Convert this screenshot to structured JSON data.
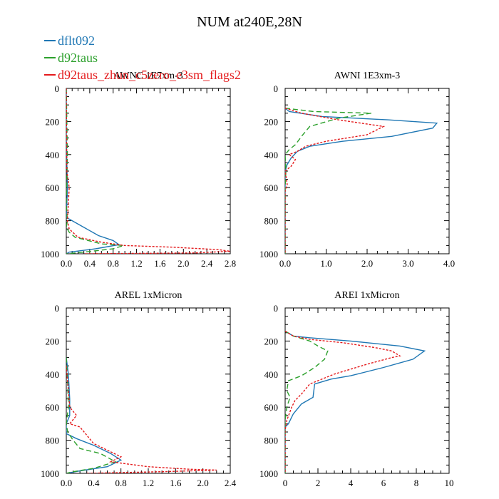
{
  "title": "NUM at240E,28N",
  "legend": [
    {
      "name": "dflt092",
      "color": "#1f77b4",
      "dash": ""
    },
    {
      "name": "d92taus",
      "color": "#2ca02c",
      "dash": "7,4"
    },
    {
      "name": "d92taus_zhun_c5zero_e3sm_flags2",
      "color": "#e41a1c",
      "dash": "3,2"
    }
  ],
  "chart_data": [
    {
      "type": "line",
      "title": "AWNC 1E7xm-3",
      "xlim": [
        0,
        2.8
      ],
      "ylim": [
        1000,
        0
      ],
      "x_ticks": [
        "0.0",
        "0.4",
        "0.8",
        "1.2",
        "1.6",
        "2.0",
        "2.4",
        "2.8"
      ],
      "x_tick_values": [
        0,
        0.4,
        0.8,
        1.2,
        1.6,
        2.0,
        2.4,
        2.8
      ],
      "y_ticks": [
        "0",
        "200",
        "400",
        "600",
        "800",
        "1000"
      ],
      "y_tick_values": [
        0,
        200,
        400,
        600,
        800,
        1000
      ],
      "series": [
        {
          "name": "dflt092",
          "points": [
            [
              0,
              0
            ],
            [
              0,
              300
            ],
            [
              0.02,
              600
            ],
            [
              0,
              780
            ],
            [
              0.1,
              800
            ],
            [
              0.3,
              840
            ],
            [
              0.55,
              890
            ],
            [
              0.8,
              920
            ],
            [
              0.9,
              945
            ],
            [
              0.5,
              970
            ],
            [
              0.05,
              990
            ],
            [
              0,
              1000
            ]
          ]
        },
        {
          "name": "d92taus",
          "points": [
            [
              0,
              0
            ],
            [
              0.02,
              400
            ],
            [
              0,
              700
            ],
            [
              0.02,
              800
            ],
            [
              0,
              840
            ],
            [
              0.05,
              870
            ],
            [
              0.15,
              900
            ],
            [
              0.6,
              940
            ],
            [
              0.98,
              950
            ],
            [
              0.8,
              970
            ],
            [
              0.3,
              990
            ],
            [
              0,
              1000
            ]
          ]
        },
        {
          "name": "d92taus_zhun_c5zero_e3sm_flags2",
          "points": [
            [
              0,
              0
            ],
            [
              0.01,
              500
            ],
            [
              0.05,
              600
            ],
            [
              0.02,
              800
            ],
            [
              0.05,
              850
            ],
            [
              0.2,
              900
            ],
            [
              0.6,
              930
            ],
            [
              1.0,
              950
            ],
            [
              1.8,
              960
            ],
            [
              2.6,
              975
            ],
            [
              2.8,
              985
            ],
            [
              2.2,
              995
            ],
            [
              0.3,
              1000
            ]
          ]
        }
      ]
    },
    {
      "type": "line",
      "title": "AWNI 1E3xm-3",
      "xlim": [
        0,
        4.0
      ],
      "ylim": [
        1000,
        0
      ],
      "x_ticks": [
        "0.0",
        "1.0",
        "2.0",
        "3.0",
        "4.0"
      ],
      "x_tick_values": [
        0,
        1,
        2,
        3,
        4
      ],
      "y_ticks": [
        "0",
        "200",
        "400",
        "600",
        "800",
        "1000"
      ],
      "y_tick_values": [
        0,
        200,
        400,
        600,
        800,
        1000
      ],
      "series": [
        {
          "name": "dflt092",
          "points": [
            [
              0,
              120
            ],
            [
              0.1,
              140
            ],
            [
              0.9,
              170
            ],
            [
              2.5,
              190
            ],
            [
              3.7,
              210
            ],
            [
              3.6,
              240
            ],
            [
              2.6,
              290
            ],
            [
              1.4,
              320
            ],
            [
              0.6,
              350
            ],
            [
              0.3,
              380
            ],
            [
              0.15,
              420
            ],
            [
              0.05,
              460
            ],
            [
              0,
              500
            ],
            [
              0,
              1000
            ]
          ]
        },
        {
          "name": "d92taus",
          "points": [
            [
              0,
              120
            ],
            [
              0.7,
              140
            ],
            [
              2.1,
              150
            ],
            [
              1.3,
              180
            ],
            [
              0.6,
              230
            ],
            [
              0.4,
              290
            ],
            [
              0.25,
              340
            ],
            [
              0.1,
              370
            ],
            [
              0,
              400
            ],
            [
              0.02,
              500
            ],
            [
              0,
              600
            ],
            [
              0,
              1000
            ]
          ]
        },
        {
          "name": "d92taus_zhun_c5zero_e3sm_flags2",
          "points": [
            [
              0,
              120
            ],
            [
              0.4,
              150
            ],
            [
              1.3,
              190
            ],
            [
              2.4,
              230
            ],
            [
              2.0,
              280
            ],
            [
              1.0,
              320
            ],
            [
              0.5,
              350
            ],
            [
              0.3,
              380
            ],
            [
              0.1,
              400
            ],
            [
              0.25,
              430
            ],
            [
              0.15,
              470
            ],
            [
              0,
              500
            ],
            [
              0.05,
              580
            ],
            [
              0,
              620
            ],
            [
              0,
              1000
            ]
          ]
        }
      ]
    },
    {
      "type": "line",
      "title": "AREL 1xMicron",
      "xlim": [
        0,
        2.4
      ],
      "ylim": [
        1000,
        0
      ],
      "x_ticks": [
        "0.0",
        "0.4",
        "0.8",
        "1.2",
        "1.6",
        "2.0",
        "2.4"
      ],
      "x_tick_values": [
        0,
        0.4,
        0.8,
        1.2,
        1.6,
        2.0,
        2.4
      ],
      "y_ticks": [
        "0",
        "200",
        "400",
        "600",
        "800",
        "1000"
      ],
      "y_tick_values": [
        0,
        200,
        400,
        600,
        800,
        1000
      ],
      "series": [
        {
          "name": "dflt092",
          "points": [
            [
              0,
              300
            ],
            [
              0.03,
              400
            ],
            [
              0.05,
              550
            ],
            [
              0.05,
              650
            ],
            [
              0.0,
              700
            ],
            [
              0.0,
              760
            ],
            [
              0.15,
              790
            ],
            [
              0.4,
              830
            ],
            [
              0.65,
              880
            ],
            [
              0.8,
              920
            ],
            [
              0.6,
              960
            ],
            [
              0.2,
              985
            ],
            [
              0,
              1000
            ]
          ]
        },
        {
          "name": "d92taus",
          "points": [
            [
              0,
              300
            ],
            [
              0.02,
              450
            ],
            [
              0.03,
              600
            ],
            [
              0.0,
              700
            ],
            [
              0.02,
              750
            ],
            [
              0.1,
              800
            ],
            [
              0.2,
              850
            ],
            [
              0.5,
              880
            ],
            [
              0.72,
              930
            ],
            [
              0.4,
              970
            ],
            [
              0.1,
              990
            ],
            [
              0,
              1000
            ]
          ]
        },
        {
          "name": "d92taus_zhun_c5zero_e3sm_flags2",
          "points": [
            [
              0,
              350
            ],
            [
              0.03,
              500
            ],
            [
              0.05,
              600
            ],
            [
              0.15,
              650
            ],
            [
              0.05,
              700
            ],
            [
              0.2,
              720
            ],
            [
              0.3,
              770
            ],
            [
              0.4,
              820
            ],
            [
              0.6,
              860
            ],
            [
              0.8,
              900
            ],
            [
              0.65,
              930
            ],
            [
              1.2,
              960
            ],
            [
              1.8,
              975
            ],
            [
              2.2,
              980
            ],
            [
              1.4,
              990
            ],
            [
              0.3,
              1000
            ]
          ]
        }
      ]
    },
    {
      "type": "line",
      "title": "AREI 1xMicron",
      "xlim": [
        0,
        10
      ],
      "ylim": [
        1000,
        0
      ],
      "x_ticks": [
        "0",
        "2",
        "4",
        "6",
        "8",
        "10"
      ],
      "x_tick_values": [
        0,
        2,
        4,
        6,
        8,
        10
      ],
      "y_ticks": [
        "0",
        "200",
        "400",
        "600",
        "800",
        "1000"
      ],
      "y_tick_values": [
        0,
        200,
        400,
        600,
        800,
        1000
      ],
      "series": [
        {
          "name": "dflt092",
          "points": [
            [
              0,
              140
            ],
            [
              0.5,
              170
            ],
            [
              1.5,
              180
            ],
            [
              4.0,
              200
            ],
            [
              7.0,
              230
            ],
            [
              8.5,
              260
            ],
            [
              7.8,
              310
            ],
            [
              6.0,
              360
            ],
            [
              4.0,
              410
            ],
            [
              2.8,
              430
            ],
            [
              1.8,
              460
            ],
            [
              1.7,
              540
            ],
            [
              1.0,
              580
            ],
            [
              0.5,
              640
            ],
            [
              0.2,
              700
            ],
            [
              0,
              720
            ],
            [
              0,
              1000
            ]
          ]
        },
        {
          "name": "d92taus",
          "points": [
            [
              0,
              140
            ],
            [
              0.5,
              170
            ],
            [
              1.5,
              200
            ],
            [
              2.0,
              230
            ],
            [
              2.6,
              260
            ],
            [
              2.4,
              310
            ],
            [
              1.8,
              360
            ],
            [
              1.0,
              410
            ],
            [
              0.2,
              440
            ],
            [
              0.1,
              500
            ],
            [
              0.3,
              540
            ],
            [
              0.1,
              600
            ],
            [
              0,
              680
            ],
            [
              0,
              1000
            ]
          ]
        },
        {
          "name": "d92taus_zhun_c5zero_e3sm_flags2",
          "points": [
            [
              0,
              140
            ],
            [
              0.5,
              170
            ],
            [
              1.5,
              190
            ],
            [
              3.5,
              210
            ],
            [
              5.5,
              240
            ],
            [
              6.5,
              260
            ],
            [
              7.0,
              290
            ],
            [
              6.5,
              300
            ],
            [
              5.0,
              340
            ],
            [
              3.0,
              400
            ],
            [
              1.5,
              460
            ],
            [
              1.0,
              520
            ],
            [
              0.6,
              560
            ],
            [
              0.4,
              600
            ],
            [
              0.1,
              680
            ],
            [
              0,
              740
            ],
            [
              0,
              1000
            ]
          ]
        }
      ]
    }
  ]
}
